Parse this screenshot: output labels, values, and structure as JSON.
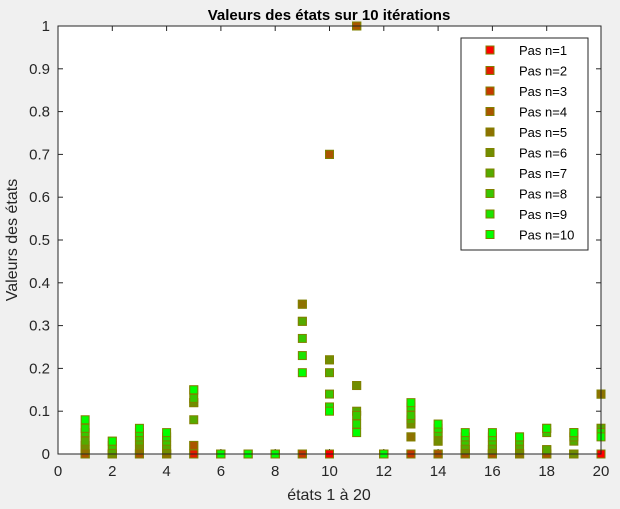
{
  "chart_data": {
    "type": "scatter",
    "title": "Valeurs des états sur 10 itérations",
    "xlabel": "états 1 à 20",
    "ylabel": "Valeurs des états",
    "xlim": [
      0,
      20
    ],
    "ylim": [
      0,
      1
    ],
    "xticks": [
      "0",
      "2",
      "4",
      "6",
      "8",
      "10",
      "12",
      "14",
      "16",
      "18",
      "20"
    ],
    "yticks": [
      "0",
      "0.1",
      "0.2",
      "0.3",
      "0.4",
      "0.5",
      "0.6",
      "0.7",
      "0.8",
      "0.9",
      "1"
    ],
    "grid": false,
    "legend_position": "top-right",
    "marker_edge_color": "#808000",
    "x": [
      1,
      2,
      3,
      4,
      5,
      6,
      7,
      8,
      9,
      10,
      11,
      12,
      13,
      14,
      15,
      16,
      17,
      18,
      19,
      20
    ],
    "series": [
      {
        "name": "Pas n=1",
        "color": "#ff0000",
        "values": [
          0,
          0,
          0,
          0,
          0,
          0,
          0,
          0,
          0,
          0,
          1,
          0,
          0,
          0,
          0,
          0,
          0,
          0,
          0,
          0
        ]
      },
      {
        "name": "Pas n=2",
        "color": "#e31c00",
        "values": [
          0,
          0,
          0,
          0,
          0,
          0,
          0,
          0,
          0,
          0.7,
          1,
          0,
          0,
          0,
          0,
          0,
          0,
          0,
          0,
          0.14
        ]
      },
      {
        "name": "Pas n=3",
        "color": "#c63900",
        "values": [
          0,
          0,
          0,
          0,
          0.02,
          0,
          0,
          0,
          0,
          0.7,
          1,
          0,
          0,
          0,
          0,
          0,
          0,
          0,
          0,
          0.14
        ]
      },
      {
        "name": "Pas n=4",
        "color": "#aa5500",
        "values": [
          0,
          0,
          0,
          0,
          0.02,
          0,
          0,
          0,
          0.35,
          0.7,
          1,
          0,
          0.04,
          0,
          0,
          0,
          0,
          0,
          0,
          0.14
        ]
      },
      {
        "name": "Pas n=5",
        "color": "#8e7100",
        "values": [
          0.01,
          0,
          0.01,
          0,
          0.12,
          0,
          0,
          0,
          0.35,
          0.22,
          0.16,
          0,
          0.04,
          0.03,
          0.01,
          0.01,
          0,
          0.01,
          0,
          0.14
        ]
      },
      {
        "name": "Pas n=6",
        "color": "#718e00",
        "values": [
          0.02,
          0,
          0.02,
          0.01,
          0.12,
          0,
          0,
          0,
          0.31,
          0.22,
          0.16,
          0,
          0.07,
          0.03,
          0.01,
          0.01,
          0.01,
          0.01,
          0,
          0.06
        ]
      },
      {
        "name": "Pas n=7",
        "color": "#55aa00",
        "values": [
          0.03,
          0.01,
          0.03,
          0.02,
          0.08,
          0,
          0,
          0,
          0.31,
          0.19,
          0.1,
          0,
          0.08,
          0.05,
          0.02,
          0.02,
          0.02,
          0.01,
          0.03,
          0.06
        ]
      },
      {
        "name": "Pas n=8",
        "color": "#39c600",
        "values": [
          0.05,
          0.02,
          0.04,
          0.03,
          0.13,
          0,
          0,
          0,
          0.27,
          0.14,
          0.09,
          0,
          0.09,
          0.05,
          0.03,
          0.03,
          0.03,
          0.05,
          0.04,
          0.05
        ]
      },
      {
        "name": "Pas n=9",
        "color": "#1ce300",
        "values": [
          0.06,
          0.03,
          0.05,
          0.04,
          0.15,
          0,
          0,
          0,
          0.23,
          0.11,
          0.07,
          0,
          0.11,
          0.06,
          0.04,
          0.04,
          0.04,
          0.06,
          0.05,
          0.05
        ]
      },
      {
        "name": "Pas n=10",
        "color": "#00ff00",
        "values": [
          0.08,
          0.03,
          0.06,
          0.05,
          0.15,
          0,
          0,
          0,
          0.19,
          0.1,
          0.05,
          0,
          0.12,
          0.07,
          0.05,
          0.05,
          0.04,
          0.06,
          0.05,
          0.04
        ]
      }
    ]
  }
}
